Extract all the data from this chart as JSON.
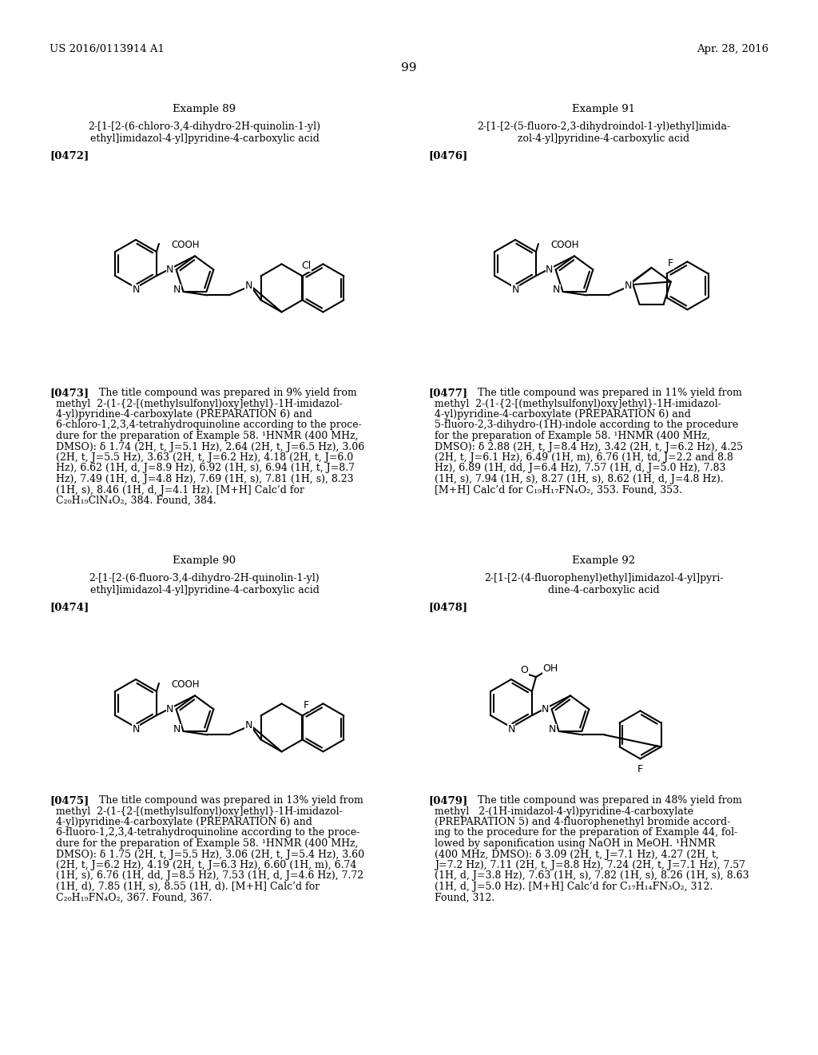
{
  "page_number": "99",
  "header_left": "US 2016/0113914 A1",
  "header_right": "Apr. 28, 2016",
  "background_color": "#ffffff",
  "text_color": "#000000",
  "examples": [
    {
      "id": "89",
      "title": "Example 89",
      "name_line1": "2-[1-[2-(6-chloro-3,4-dihydro-2H-quinolin-1-yl)",
      "name_line2": "ethyl]imidazol-4-yl]pyridine-4-carboxylic acid",
      "tag": "[0472]",
      "text_tag": "[0473]",
      "body_lines": [
        "The title compound was prepared in 9% yield from",
        "methyl  2-(1-{2-[(methylsulfonyl)oxy]ethyl}-1H-imidazol-",
        "4-yl)pyridine-4-carboxylate (PREPARATION 6) and",
        "6-chloro-1,2,3,4-tetrahydroquinoline according to the proce-",
        "dure for the preparation of Example 58. ¹HNMR (400 MHz,",
        "DMSO): δ 1.74 (2H, t, J=5.1 Hz), 2.64 (2H, t, J=6.5 Hz), 3.06",
        "(2H, t, J=5.5 Hz), 3.63 (2H, t, J=6.2 Hz), 4.18 (2H, t, J=6.0",
        "Hz), 6.62 (1H, d, J=8.9 Hz), 6.92 (1H, s), 6.94 (1H, t, J=8.7",
        "Hz), 7.49 (1H, d, J=4.8 Hz), 7.69 (1H, s), 7.81 (1H, s), 8.23",
        "(1H, s), 8.46 (1H, d, J=4.1 Hz). [M+H] Calc’d for",
        "C₂₀H₁₉ClN₄O₂, 384. Found, 384."
      ]
    },
    {
      "id": "91",
      "title": "Example 91",
      "name_line1": "2-[1-[2-(5-fluoro-2,3-dihydroindol-1-yl)ethyl]imida-",
      "name_line2": "zol-4-yl]pyridine-4-carboxylic acid",
      "tag": "[0476]",
      "text_tag": "[0477]",
      "body_lines": [
        "The title compound was prepared in 11% yield from",
        "methyl  2-(1-{2-[(methylsulfonyl)oxy]ethyl}-1H-imidazol-",
        "4-yl)pyridine-4-carboxylate (PREPARATION 6) and",
        "5-fluoro-2,3-dihydro-(1H)-indole according to the procedure",
        "for the preparation of Example 58. ¹HNMR (400 MHz,",
        "DMSO): δ 2.88 (2H, t, J=8.4 Hz), 3.42 (2H, t, J=6.2 Hz), 4.25",
        "(2H, t, J=6.1 Hz), 6.49 (1H, m), 6.76 (1H, td, J=2.2 and 8.8",
        "Hz), 6.89 (1H, dd, J=6.4 Hz), 7.57 (1H, d, J=5.0 Hz), 7.83",
        "(1H, s), 7.94 (1H, s), 8.27 (1H, s), 8.62 (1H, d, J=4.8 Hz).",
        "[M+H] Calc’d for C₁₉H₁₇FN₄O₂, 353. Found, 353."
      ]
    },
    {
      "id": "90",
      "title": "Example 90",
      "name_line1": "2-[1-[2-(6-fluoro-3,4-dihydro-2H-quinolin-1-yl)",
      "name_line2": "ethyl]imidazol-4-yl]pyridine-4-carboxylic acid",
      "tag": "[0474]",
      "text_tag": "[0475]",
      "body_lines": [
        "The title compound was prepared in 13% yield from",
        "methyl  2-(1-{2-[(methylsulfonyl)oxy]ethyl}-1H-imidazol-",
        "4-yl)pyridine-4-carboxylate (PREPARATION 6) and",
        "6-fluoro-1,2,3,4-tetrahydroquinoline according to the proce-",
        "dure for the preparation of Example 58. ¹HNMR (400 MHz,",
        "DMSO): δ 1.75 (2H, t, J=5.5 Hz), 3.06 (2H, t, J=5.4 Hz), 3.60",
        "(2H, t, J=6.2 Hz), 4.19 (2H, t, J=6.3 Hz), 6.60 (1H, m), 6.74",
        "(1H, s), 6.76 (1H, dd, J=8.5 Hz), 7.53 (1H, d, J=4.6 Hz), 7.72",
        "(1H, d), 7.85 (1H, s), 8.55 (1H, d). [M+H] Calc’d for",
        "C₂₀H₁₉FN₄O₂, 367. Found, 367."
      ]
    },
    {
      "id": "92",
      "title": "Example 92",
      "name_line1": "2-[1-[2-(4-fluorophenyl)ethyl]imidazol-4-yl]pyri-",
      "name_line2": "dine-4-carboxylic acid",
      "tag": "[0478]",
      "text_tag": "[0479]",
      "body_lines": [
        "The title compound was prepared in 48% yield from",
        "methyl   2-(1H-imidazol-4-yl)pyridine-4-carboxylate",
        "(PREPARATION 5) and 4-fluorophenethyl bromide accord-",
        "ing to the procedure for the preparation of Example 44, fol-",
        "lowed by saponification using NaOH in MeOH. ¹HNMR",
        "(400 MHz, DMSO): δ 3.09 (2H, t, J=7.1 Hz), 4.27 (2H, t,",
        "J=7.2 Hz), 7.11 (2H, t, J=8.8 Hz), 7.24 (2H, t, J=7.1 Hz), 7.57",
        "(1H, d, J=3.8 Hz), 7.63 (1H, s), 7.82 (1H, s), 8.26 (1H, s), 8.63",
        "(1H, d, J=5.0 Hz). [M+H] Calc’d for C₁₇H₁₄FN₃O₂, 312.",
        "Found, 312."
      ]
    }
  ]
}
